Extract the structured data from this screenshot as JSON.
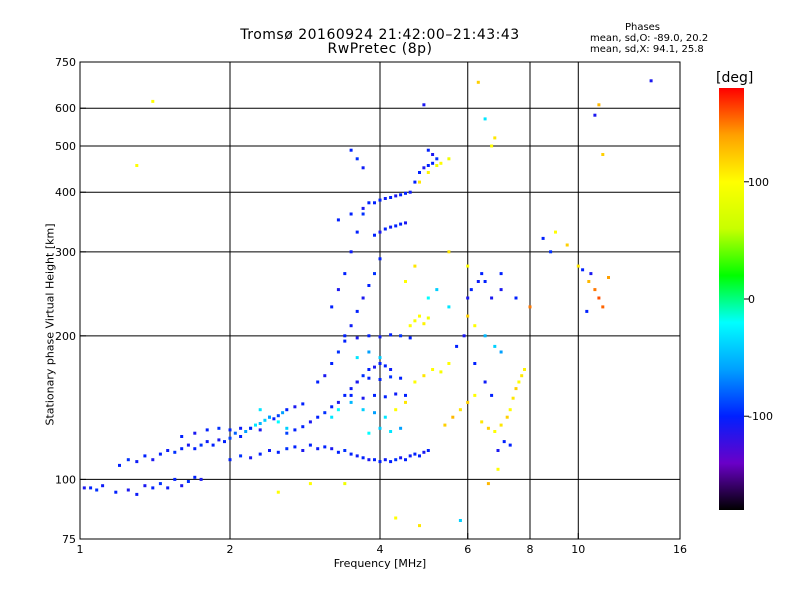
{
  "chart_data": {
    "type": "scatter",
    "title": "Tromsø 20160924 21:42:00–21:43:43",
    "subtitle": "RwPretec (8p)",
    "xlabel": "Frequency [MHz]",
    "ylabel": "Stationary phase Virtual Height [km]",
    "x_scale": "log",
    "y_scale": "log",
    "xlim": [
      1,
      16
    ],
    "ylim": [
      75,
      750
    ],
    "x_ticks": [
      1,
      2,
      4,
      6,
      8,
      10,
      16
    ],
    "x_gridlines": [
      2,
      4,
      6,
      8,
      10
    ],
    "y_ticks": [
      75,
      100,
      200,
      300,
      400,
      500,
      600,
      750
    ],
    "y_gridlines": [
      100,
      200,
      300,
      400,
      500,
      600
    ],
    "grid": true,
    "colorbar": {
      "label": "[deg]",
      "range": [
        -180,
        180
      ],
      "ticks": [
        -100,
        0,
        100
      ],
      "colors": [
        "#000000",
        "#6a00c8",
        "#0020ff",
        "#00a0ff",
        "#00ffff",
        "#00ff00",
        "#c8ff00",
        "#ffff00",
        "#ffa000",
        "#ff0000"
      ]
    },
    "stats_header": "Phases",
    "stats_lines": [
      "mean, sd,O: -89.0, 20.2",
      "mean, sd,X: 94.1, 25.8"
    ],
    "points": [
      [
        1.02,
        96,
        -110
      ],
      [
        1.05,
        96,
        -100
      ],
      [
        1.08,
        95,
        -95
      ],
      [
        1.11,
        97,
        -105
      ],
      [
        1.18,
        94,
        -100
      ],
      [
        1.25,
        95,
        -110
      ],
      [
        1.3,
        93,
        -105
      ],
      [
        1.35,
        97,
        -110
      ],
      [
        1.4,
        96,
        -100
      ],
      [
        1.45,
        98,
        -95
      ],
      [
        1.5,
        96,
        -105
      ],
      [
        1.55,
        100,
        -100
      ],
      [
        1.6,
        97,
        -110
      ],
      [
        1.65,
        99,
        -95
      ],
      [
        1.7,
        101,
        -100
      ],
      [
        1.75,
        100,
        -110
      ],
      [
        1.2,
        107,
        -100
      ],
      [
        1.25,
        110,
        -95
      ],
      [
        1.3,
        109,
        -105
      ],
      [
        1.35,
        112,
        -100
      ],
      [
        1.4,
        110,
        -110
      ],
      [
        1.45,
        113,
        -100
      ],
      [
        1.5,
        115,
        -105
      ],
      [
        1.55,
        114,
        -95
      ],
      [
        1.6,
        116,
        -100
      ],
      [
        1.65,
        118,
        -110
      ],
      [
        1.7,
        116,
        -100
      ],
      [
        1.75,
        118,
        -95
      ],
      [
        1.8,
        120,
        -105
      ],
      [
        1.85,
        118,
        -100
      ],
      [
        1.9,
        121,
        -110
      ],
      [
        1.95,
        120,
        -100
      ],
      [
        2.0,
        122,
        -90
      ],
      [
        2.05,
        125,
        -80
      ],
      [
        2.1,
        123,
        -100
      ],
      [
        2.15,
        126,
        -60
      ],
      [
        2.2,
        128,
        -40
      ],
      [
        2.25,
        130,
        -30
      ],
      [
        2.3,
        131,
        -50
      ],
      [
        2.35,
        133,
        -40
      ],
      [
        2.4,
        135,
        -70
      ],
      [
        2.45,
        134,
        -100
      ],
      [
        2.5,
        136,
        -90
      ],
      [
        2.55,
        138,
        -60
      ],
      [
        2.6,
        140,
        -100
      ],
      [
        2.7,
        142,
        -110
      ],
      [
        2.8,
        144,
        -100
      ],
      [
        1.6,
        123,
        -100
      ],
      [
        1.7,
        125,
        -110
      ],
      [
        1.8,
        127,
        -100
      ],
      [
        1.9,
        128,
        -95
      ],
      [
        2.0,
        127,
        -100
      ],
      [
        2.1,
        128,
        -105
      ],
      [
        2.2,
        128,
        -100
      ],
      [
        2.3,
        127,
        -110
      ],
      [
        2.0,
        110,
        -100
      ],
      [
        2.1,
        112,
        -95
      ],
      [
        2.2,
        111,
        -110
      ],
      [
        2.3,
        113,
        -100
      ],
      [
        2.4,
        115,
        -105
      ],
      [
        2.5,
        114,
        -100
      ],
      [
        2.6,
        116,
        -95
      ],
      [
        2.7,
        117,
        -100
      ],
      [
        2.8,
        115,
        -110
      ],
      [
        2.9,
        118,
        -100
      ],
      [
        3.0,
        116,
        -105
      ],
      [
        3.1,
        117,
        -100
      ],
      [
        3.2,
        116,
        -110
      ],
      [
        3.3,
        114,
        -100
      ],
      [
        3.4,
        115,
        -95
      ],
      [
        3.5,
        113,
        -100
      ],
      [
        3.6,
        112,
        -105
      ],
      [
        3.7,
        111,
        -100
      ],
      [
        3.8,
        110,
        -110
      ],
      [
        3.9,
        110,
        -100
      ],
      [
        4.0,
        109,
        -100
      ],
      [
        4.1,
        110,
        -105
      ],
      [
        4.2,
        109,
        -100
      ],
      [
        4.3,
        110,
        -95
      ],
      [
        4.4,
        111,
        -110
      ],
      [
        4.5,
        110,
        -100
      ],
      [
        4.6,
        112,
        -105
      ],
      [
        4.7,
        113,
        -100
      ],
      [
        4.8,
        112,
        -100
      ],
      [
        4.9,
        114,
        -110
      ],
      [
        5.0,
        115,
        -100
      ],
      [
        2.6,
        125,
        -90
      ],
      [
        2.7,
        127,
        -100
      ],
      [
        2.8,
        129,
        -100
      ],
      [
        2.9,
        132,
        -110
      ],
      [
        3.0,
        135,
        -100
      ],
      [
        3.1,
        138,
        -95
      ],
      [
        3.2,
        142,
        -100
      ],
      [
        3.3,
        145,
        -110
      ],
      [
        3.4,
        150,
        -100
      ],
      [
        3.5,
        155,
        -105
      ],
      [
        3.6,
        160,
        -100
      ],
      [
        3.7,
        165,
        -95
      ],
      [
        3.8,
        170,
        -100
      ],
      [
        3.9,
        172,
        -110
      ],
      [
        4.0,
        175,
        -100
      ],
      [
        4.1,
        173,
        -100
      ],
      [
        4.2,
        170,
        -105
      ],
      [
        3.0,
        160,
        -100
      ],
      [
        3.1,
        165,
        -110
      ],
      [
        3.2,
        175,
        -100
      ],
      [
        3.3,
        185,
        -95
      ],
      [
        3.4,
        195,
        -100
      ],
      [
        3.5,
        210,
        -105
      ],
      [
        3.6,
        225,
        -100
      ],
      [
        3.7,
        240,
        -110
      ],
      [
        3.8,
        255,
        -100
      ],
      [
        3.9,
        270,
        -95
      ],
      [
        4.0,
        290,
        -100
      ],
      [
        3.2,
        230,
        -100
      ],
      [
        3.3,
        250,
        -110
      ],
      [
        3.4,
        270,
        -100
      ],
      [
        3.5,
        300,
        -105
      ],
      [
        3.6,
        330,
        -100
      ],
      [
        3.7,
        360,
        -95
      ],
      [
        3.8,
        380,
        -100
      ],
      [
        3.4,
        200,
        -100
      ],
      [
        3.6,
        198,
        -110
      ],
      [
        3.8,
        200,
        -100
      ],
      [
        4.0,
        199,
        -105
      ],
      [
        4.2,
        201,
        -100
      ],
      [
        4.4,
        200,
        -95
      ],
      [
        4.6,
        198,
        -100
      ],
      [
        3.5,
        150,
        -100
      ],
      [
        3.7,
        148,
        -110
      ],
      [
        3.9,
        150,
        -100
      ],
      [
        4.1,
        149,
        -100
      ],
      [
        4.3,
        151,
        -105
      ],
      [
        4.5,
        150,
        -100
      ],
      [
        3.6,
        160,
        -110
      ],
      [
        3.8,
        163,
        -100
      ],
      [
        4.0,
        162,
        -100
      ],
      [
        4.2,
        164,
        -95
      ],
      [
        4.4,
        163,
        -100
      ],
      [
        3.9,
        325,
        -100
      ],
      [
        4.0,
        330,
        -110
      ],
      [
        4.1,
        335,
        -100
      ],
      [
        4.2,
        338,
        -105
      ],
      [
        4.3,
        340,
        -100
      ],
      [
        4.4,
        343,
        -100
      ],
      [
        4.5,
        345,
        -110
      ],
      [
        3.9,
        380,
        -100
      ],
      [
        4.0,
        385,
        -100
      ],
      [
        4.1,
        388,
        -105
      ],
      [
        4.2,
        390,
        -100
      ],
      [
        4.3,
        393,
        -110
      ],
      [
        4.4,
        395,
        -100
      ],
      [
        4.5,
        398,
        -100
      ],
      [
        4.6,
        400,
        -105
      ],
      [
        4.7,
        420,
        -100
      ],
      [
        4.8,
        440,
        -100
      ],
      [
        4.9,
        450,
        -110
      ],
      [
        5.0,
        455,
        -100
      ],
      [
        5.1,
        460,
        -100
      ],
      [
        5.2,
        470,
        -95
      ],
      [
        5.0,
        490,
        -100
      ],
      [
        5.1,
        480,
        -110
      ],
      [
        4.9,
        610,
        -110
      ],
      [
        3.5,
        490,
        -100
      ],
      [
        3.6,
        470,
        -95
      ],
      [
        3.7,
        450,
        -105
      ],
      [
        3.3,
        350,
        -100
      ],
      [
        3.5,
        360,
        -100
      ],
      [
        3.7,
        370,
        -110
      ],
      [
        4.8,
        420,
        110
      ],
      [
        5.0,
        440,
        105
      ],
      [
        5.2,
        455,
        95
      ],
      [
        5.3,
        460,
        100
      ],
      [
        5.5,
        470,
        90
      ],
      [
        4.6,
        210,
        100
      ],
      [
        4.7,
        215,
        95
      ],
      [
        4.8,
        220,
        100
      ],
      [
        4.9,
        212,
        105
      ],
      [
        5.0,
        218,
        90
      ],
      [
        4.7,
        160,
        100
      ],
      [
        4.9,
        165,
        110
      ],
      [
        5.1,
        170,
        100
      ],
      [
        5.3,
        168,
        95
      ],
      [
        5.5,
        175,
        100
      ],
      [
        5.4,
        130,
        120
      ],
      [
        5.6,
        135,
        130
      ],
      [
        5.8,
        140,
        110
      ],
      [
        6.0,
        145,
        120
      ],
      [
        6.2,
        150,
        100
      ],
      [
        6.4,
        132,
        110
      ],
      [
        6.6,
        128,
        120
      ],
      [
        6.8,
        126,
        100
      ],
      [
        7.0,
        130,
        110
      ],
      [
        7.2,
        135,
        120
      ],
      [
        7.3,
        140,
        100
      ],
      [
        7.4,
        148,
        110
      ],
      [
        7.5,
        155,
        120
      ],
      [
        7.6,
        160,
        100
      ],
      [
        7.7,
        165,
        110
      ],
      [
        7.8,
        170,
        105
      ],
      [
        6.0,
        220,
        120
      ],
      [
        6.2,
        210,
        100
      ],
      [
        6.5,
        200,
        -50
      ],
      [
        6.8,
        190,
        -40
      ],
      [
        7.0,
        185,
        -60
      ],
      [
        5.5,
        300,
        110
      ],
      [
        6.0,
        280,
        100
      ],
      [
        6.5,
        260,
        -100
      ],
      [
        7.0,
        250,
        -110
      ],
      [
        7.5,
        240,
        -100
      ],
      [
        8.0,
        230,
        150
      ],
      [
        8.5,
        320,
        -100
      ],
      [
        8.8,
        300,
        -95
      ],
      [
        9.0,
        330,
        100
      ],
      [
        9.5,
        310,
        120
      ],
      [
        10.0,
        280,
        110
      ],
      [
        10.2,
        275,
        -100
      ],
      [
        10.5,
        260,
        130
      ],
      [
        10.8,
        250,
        150
      ],
      [
        11.0,
        240,
        160
      ],
      [
        11.2,
        230,
        155
      ],
      [
        11.5,
        265,
        140
      ],
      [
        10.4,
        225,
        -100
      ],
      [
        10.6,
        270,
        -110
      ],
      [
        10.8,
        580,
        -110
      ],
      [
        11.0,
        610,
        130
      ],
      [
        11.2,
        480,
        120
      ],
      [
        6.3,
        680,
        120
      ],
      [
        6.5,
        570,
        -30
      ],
      [
        6.7,
        500,
        100
      ],
      [
        6.8,
        520,
        110
      ],
      [
        1.4,
        620,
        100
      ],
      [
        1.3,
        455,
        100
      ],
      [
        14.0,
        685,
        -110
      ],
      [
        6.6,
        98,
        130
      ],
      [
        6.9,
        105,
        100
      ],
      [
        5.8,
        82,
        -40
      ],
      [
        4.8,
        80,
        110
      ],
      [
        4.3,
        83,
        100
      ],
      [
        3.4,
        98,
        90
      ],
      [
        2.9,
        98,
        100
      ],
      [
        2.5,
        94,
        100
      ],
      [
        3.2,
        135,
        -30
      ],
      [
        3.3,
        140,
        -20
      ],
      [
        3.5,
        145,
        -50
      ],
      [
        3.7,
        140,
        -40
      ],
      [
        3.9,
        138,
        -60
      ],
      [
        4.1,
        135,
        -30
      ],
      [
        4.3,
        140,
        100
      ],
      [
        4.5,
        145,
        110
      ],
      [
        2.4,
        135,
        -60
      ],
      [
        2.5,
        132,
        -20
      ],
      [
        2.6,
        128,
        -40
      ],
      [
        2.3,
        140,
        -30
      ],
      [
        3.8,
        125,
        -20
      ],
      [
        4.0,
        128,
        -40
      ],
      [
        4.2,
        126,
        -30
      ],
      [
        4.4,
        128,
        -60
      ],
      [
        3.6,
        180,
        -30
      ],
      [
        3.8,
        185,
        -60
      ],
      [
        4.0,
        180,
        -40
      ],
      [
        5.0,
        240,
        -20
      ],
      [
        5.2,
        250,
        -40
      ],
      [
        5.5,
        230,
        -30
      ],
      [
        4.5,
        260,
        100
      ],
      [
        4.7,
        280,
        110
      ],
      [
        6.0,
        240,
        -110
      ],
      [
        6.1,
        250,
        -100
      ],
      [
        6.3,
        260,
        -105
      ],
      [
        6.4,
        270,
        -100
      ],
      [
        6.7,
        240,
        -110
      ],
      [
        7.0,
        270,
        -100
      ],
      [
        5.7,
        190,
        -100
      ],
      [
        5.9,
        200,
        -110
      ],
      [
        6.2,
        175,
        -100
      ],
      [
        6.5,
        160,
        -105
      ],
      [
        6.7,
        150,
        -100
      ],
      [
        7.1,
        120,
        -100
      ],
      [
        6.9,
        115,
        -110
      ],
      [
        7.3,
        118,
        -100
      ]
    ]
  }
}
